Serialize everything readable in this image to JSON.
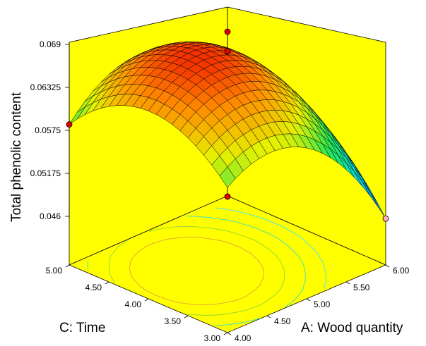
{
  "chart_data": {
    "type": "surface3d",
    "zlabel": "Total phenolic content",
    "xlabel": "A: Wood quantity",
    "ylabel": "C: Time",
    "x_ticks": [
      "4.00",
      "4.50",
      "5.00",
      "5.50",
      "6.00"
    ],
    "y_ticks": [
      "3.00",
      "3.50",
      "4.00",
      "4.50",
      "5.00"
    ],
    "z_ticks": [
      "0.046",
      "0.05175",
      "0.0575",
      "0.06325",
      "0.069"
    ],
    "xlim": [
      4.0,
      6.0
    ],
    "ylim": [
      3.0,
      5.0
    ],
    "zlim": [
      0.046,
      0.069
    ],
    "surface_model": {
      "center": [
        5.0,
        4.0
      ],
      "peak": 0.0675,
      "edge_values": {
        "x4_y3": 0.0588,
        "x4_y5": 0.0582,
        "x6_y3": 0.0456,
        "x6_y5": 0.0538
      }
    },
    "design_points": [
      {
        "x": 5.0,
        "y": 4.0,
        "z": 0.0706
      },
      {
        "x": 5.0,
        "y": 4.0,
        "z": 0.068
      },
      {
        "x": 4.0,
        "y": 5.0,
        "z": 0.0582
      },
      {
        "x": 6.0,
        "y": 3.0,
        "z": 0.0456
      },
      {
        "x": 4.0,
        "y": 3.0,
        "z": 0.0576
      }
    ],
    "colors": {
      "background": "#ffff00",
      "grid": "#000000",
      "point": "#e00000",
      "point_pale": "#ffb0c0"
    }
  }
}
